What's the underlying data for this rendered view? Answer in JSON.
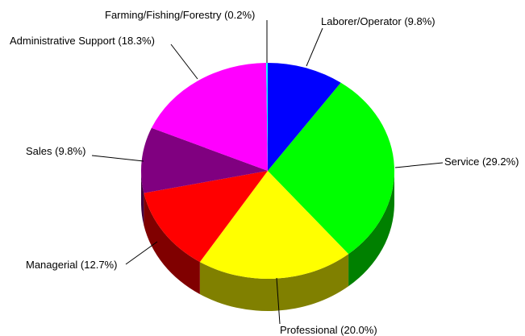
{
  "chart_data": {
    "type": "pie",
    "style": "3d",
    "slices": [
      {
        "label": "Laborer/Operator (9.8%)",
        "value": 9.8,
        "color": "#0000ff",
        "side_color": "#000080"
      },
      {
        "label": "Service (29.2%)",
        "value": 29.2,
        "color": "#00ff00",
        "side_color": "#008000"
      },
      {
        "label": "Professional (20.0%)",
        "value": 20.0,
        "color": "#ffff00",
        "side_color": "#808000"
      },
      {
        "label": "Managerial (12.7%)",
        "value": 12.7,
        "color": "#ff0000",
        "side_color": "#800000"
      },
      {
        "label": "Sales (9.8%)",
        "value": 9.8,
        "color": "#800080",
        "side_color": "#400040"
      },
      {
        "label": "Administrative Support (18.3%)",
        "value": 18.3,
        "color": "#ff00ff",
        "side_color": "#800080"
      },
      {
        "label": "Farming/Fishing/Forestry (0.2%)",
        "value": 0.2,
        "color": "#00ffff",
        "side_color": "#008080"
      }
    ]
  }
}
